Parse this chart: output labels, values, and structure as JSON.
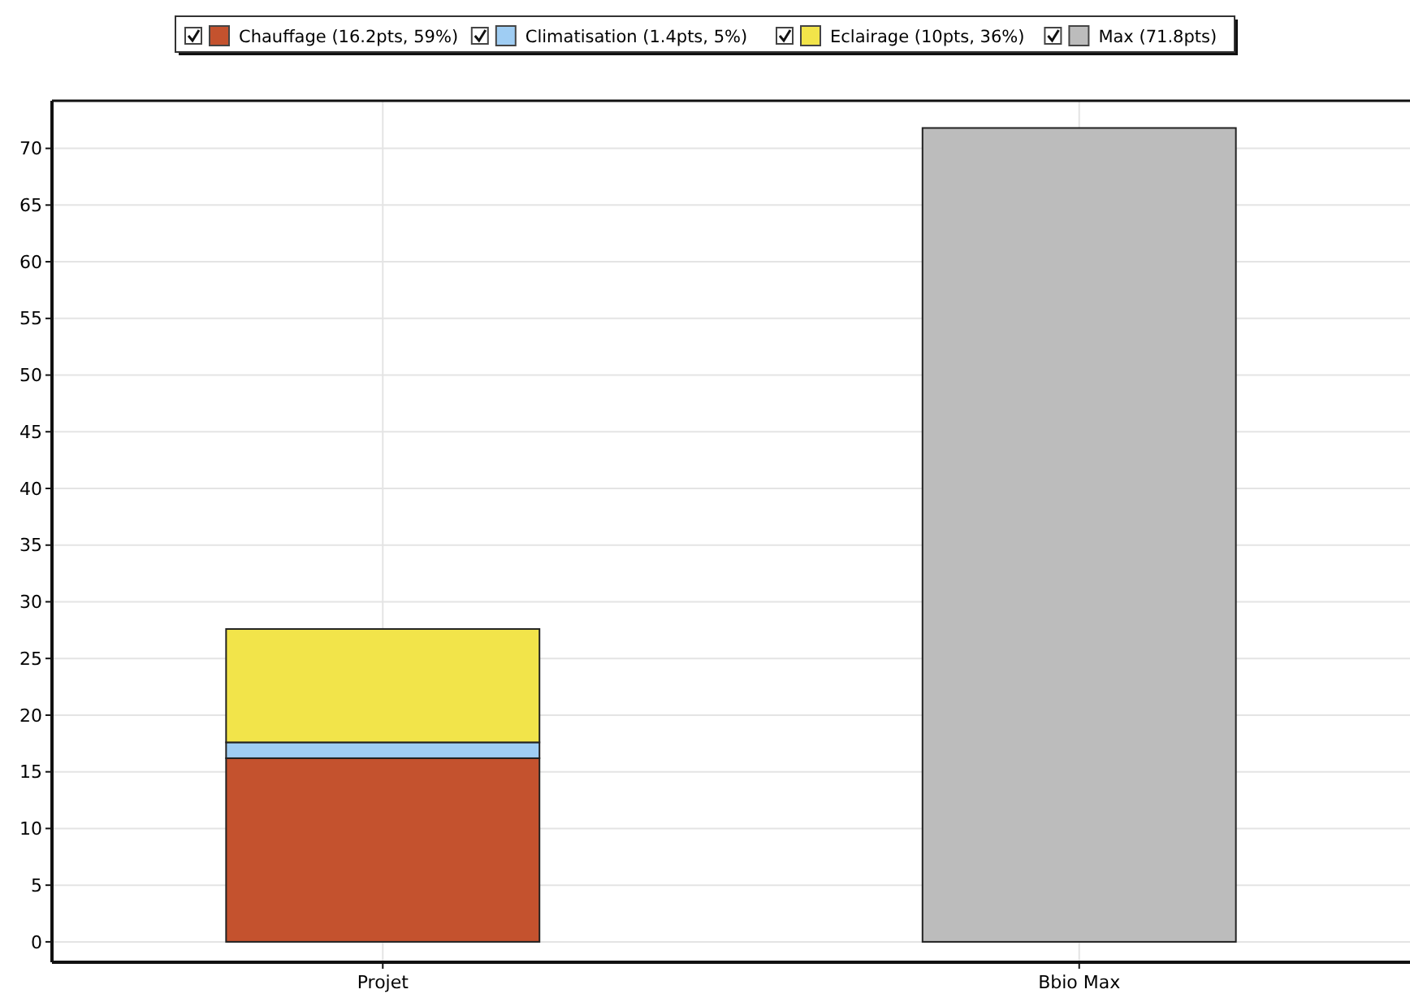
{
  "chart_data": {
    "type": "bar",
    "stacked": true,
    "categories": [
      "Projet",
      "Bbio Max"
    ],
    "series": [
      {
        "name": "Chauffage (16.2pts, 59%)",
        "color": "#c4522e",
        "values": [
          16.2,
          null
        ]
      },
      {
        "name": "Climatisation (1.4pts, 5%)",
        "color": "#9fcdf3",
        "values": [
          1.4,
          null
        ]
      },
      {
        "name": "Eclairage (10pts, 36%)",
        "color": "#f2e44a",
        "values": [
          10,
          null
        ]
      },
      {
        "name": "Max (71.8pts)",
        "color": "#bcbcbc",
        "values": [
          null,
          71.8
        ]
      }
    ],
    "ylim": [
      -1.8,
      74.2
    ],
    "yticks": [
      0,
      5,
      10,
      15,
      20,
      25,
      30,
      35,
      40,
      45,
      50,
      55,
      60,
      65,
      70
    ],
    "grid": true,
    "legend": "top"
  }
}
